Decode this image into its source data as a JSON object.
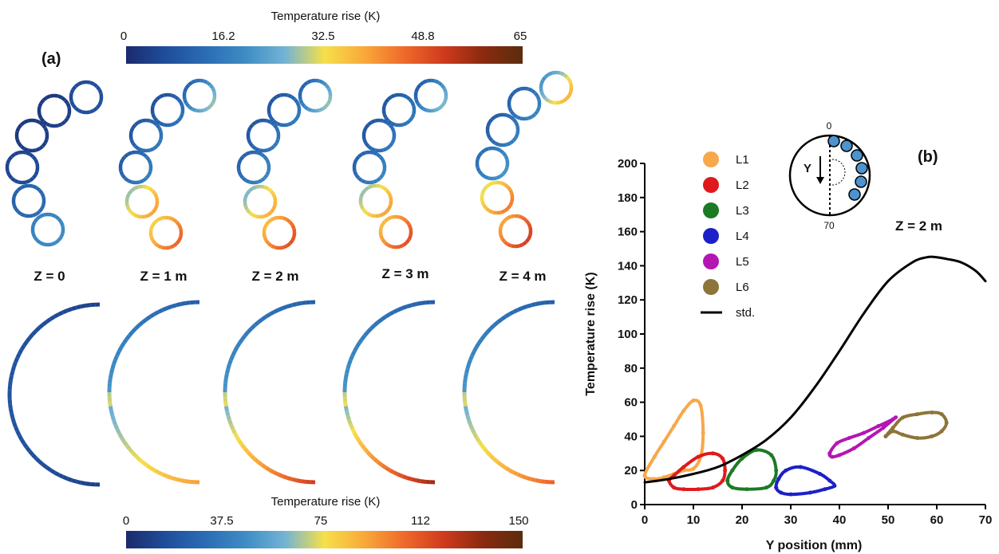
{
  "panel_a": {
    "label": "(a)",
    "colorbar_top": {
      "title": "Temperature rise (K)",
      "ticks": [
        "0",
        "16.2",
        "32.5",
        "48.8",
        "65"
      ],
      "range": [
        0,
        65
      ]
    },
    "colorbar_bottom": {
      "title": "Temperature rise (K)",
      "ticks": [
        "0",
        "37.5",
        "75",
        "112",
        "150"
      ],
      "range": [
        0,
        150
      ]
    },
    "slices": [
      {
        "label": "Z = 0"
      },
      {
        "label": "Z = 1 m"
      },
      {
        "label": "Z = 2 m"
      },
      {
        "label": "Z = 3 m"
      },
      {
        "label": "Z = 4 m"
      }
    ],
    "colormap": [
      "#1a2a6c",
      "#1f4e9b",
      "#2a6cb4",
      "#3d8cc4",
      "#72b3d4",
      "#f6e04a",
      "#f9a93a",
      "#ef6a2b",
      "#cf3b1e",
      "#8a2a0f",
      "#5b2d0e"
    ]
  },
  "chart_data": {
    "type": "line",
    "panel_label": "(b)",
    "annotation": "Z = 2 m",
    "xlabel": "Y position (mm)",
    "ylabel": "Temperature rise (K)",
    "xlim": [
      0,
      70
    ],
    "ylim": [
      0,
      200
    ],
    "xticks": [
      0,
      10,
      20,
      30,
      40,
      50,
      60,
      70
    ],
    "yticks": [
      0,
      20,
      40,
      60,
      80,
      100,
      120,
      140,
      160,
      180,
      200
    ],
    "grid": false,
    "legend_position": "top-left",
    "inset": {
      "top_label": "0",
      "bottom_label": "70",
      "axis_label": "Y"
    },
    "series": [
      {
        "name": "L1",
        "color": "#f7a84a",
        "kind": "loop",
        "x": [
          0,
          2,
          4,
          6,
          8,
          10,
          11.5,
          12,
          11.5,
          10,
          8,
          6,
          4,
          2,
          0
        ],
        "y": [
          17,
          15,
          16,
          18,
          20,
          21,
          28,
          42,
          58,
          61,
          55,
          46,
          37,
          28,
          17
        ]
      },
      {
        "name": "L2",
        "color": "#e0191c",
        "kind": "loop",
        "x": [
          5,
          6,
          8,
          11,
          14,
          16,
          16.5,
          16,
          14,
          11,
          8,
          6,
          5
        ],
        "y": [
          14,
          10,
          9,
          9,
          10,
          14,
          20,
          27,
          30,
          28,
          22,
          17,
          14
        ]
      },
      {
        "name": "L3",
        "color": "#1c7a24",
        "kind": "loop",
        "x": [
          17,
          18,
          21,
          25,
          26.5,
          27,
          26,
          23,
          20,
          18,
          17
        ],
        "y": [
          14,
          10,
          9,
          10,
          14,
          20,
          29,
          32,
          27,
          20,
          14
        ]
      },
      {
        "name": "L4",
        "color": "#1c20c8",
        "kind": "loop",
        "x": [
          27,
          28,
          30,
          34,
          37,
          39,
          38,
          36,
          32,
          29,
          27.5,
          27
        ],
        "y": [
          10,
          7,
          6,
          7,
          9,
          11,
          14,
          18,
          22,
          20,
          15,
          10
        ]
      },
      {
        "name": "L5",
        "color": "#b316b3",
        "kind": "loop",
        "x": [
          38,
          38.5,
          40,
          43,
          46,
          49,
          51.5,
          51,
          48,
          45,
          42,
          39.5,
          38
        ],
        "y": [
          30,
          28,
          29,
          33,
          39,
          45,
          51,
          50,
          46,
          42,
          39,
          36,
          30
        ]
      },
      {
        "name": "L6",
        "color": "#8d7438",
        "kind": "loop",
        "x": [
          49.5,
          51,
          53,
          56,
          59,
          61,
          62,
          61,
          59,
          56,
          53,
          51,
          49.5
        ],
        "y": [
          40,
          45,
          51,
          53,
          54,
          53,
          48,
          43,
          40,
          39,
          41,
          43,
          40
        ]
      },
      {
        "name": "std.",
        "color": "#000000",
        "kind": "line",
        "x": [
          0,
          5,
          10,
          15,
          20,
          25,
          30,
          35,
          40,
          45,
          50,
          55,
          58,
          60,
          62,
          65,
          68,
          70
        ],
        "y": [
          13,
          15,
          18,
          22,
          29,
          38,
          51,
          69,
          90,
          112,
          131,
          142,
          145,
          145,
          144,
          142,
          137,
          131
        ]
      }
    ]
  }
}
